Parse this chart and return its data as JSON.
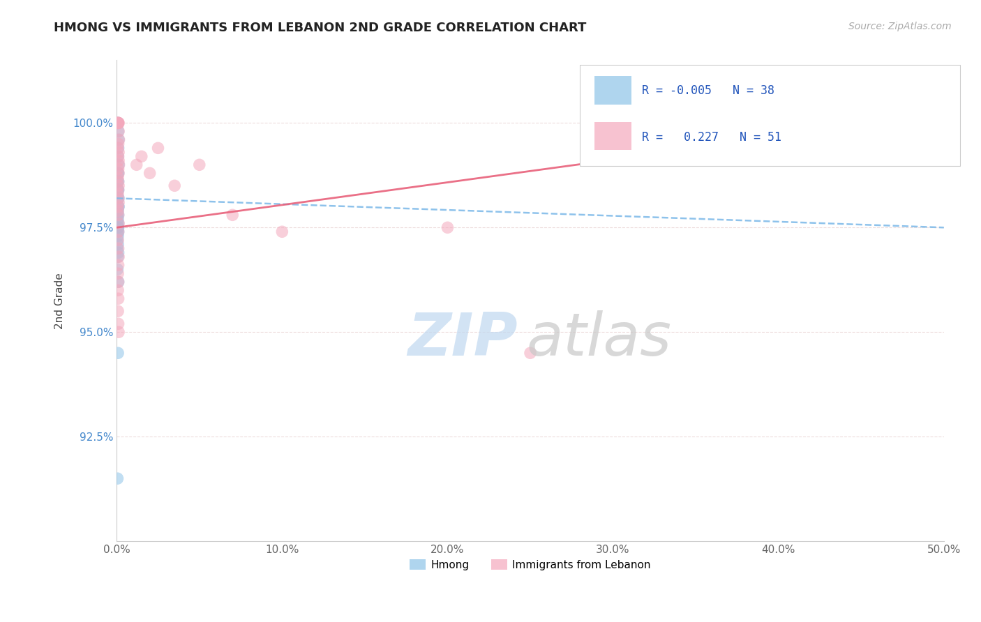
{
  "title": "HMONG VS IMMIGRANTS FROM LEBANON 2ND GRADE CORRELATION CHART",
  "source": "Source: ZipAtlas.com",
  "ylabel": "2nd Grade",
  "xlim": [
    0.0,
    50.0
  ],
  "ylim": [
    90.0,
    101.5
  ],
  "yticks": [
    92.5,
    95.0,
    97.5,
    100.0
  ],
  "yticklabels": [
    "92.5%",
    "95.0%",
    "97.5%",
    "100.0%"
  ],
  "xticks": [
    0.0,
    10.0,
    20.0,
    30.0,
    40.0,
    50.0
  ],
  "xticklabels": [
    "0.0%",
    "10.0%",
    "20.0%",
    "30.0%",
    "40.0%",
    "50.0%"
  ],
  "legend_R_blue": "-0.005",
  "legend_N_blue": "38",
  "legend_R_pink": "0.227",
  "legend_N_pink": "51",
  "blue_color": "#8ec4e8",
  "pink_color": "#f4a8bc",
  "trend_blue_color": "#7ab8e8",
  "trend_pink_color": "#e8607a",
  "blue_dots_x": [
    0.0,
    0.05,
    0.08,
    0.1,
    0.12,
    0.1,
    0.08,
    0.12,
    0.1,
    0.08,
    0.05,
    0.1,
    0.08,
    0.1,
    0.12,
    0.08,
    0.1,
    0.12,
    0.08,
    0.1,
    0.05,
    0.08,
    0.1,
    0.05,
    0.08,
    0.1,
    0.08,
    0.1,
    0.08,
    0.05,
    0.08,
    0.05,
    0.1,
    0.08,
    0.05,
    0.1,
    0.08,
    0.05
  ],
  "blue_dots_y": [
    100.0,
    100.0,
    100.0,
    99.8,
    99.6,
    99.4,
    99.2,
    99.0,
    98.8,
    98.8,
    98.6,
    98.6,
    98.4,
    98.4,
    98.2,
    98.2,
    98.0,
    98.0,
    97.9,
    97.8,
    97.8,
    97.7,
    97.6,
    97.6,
    97.5,
    97.5,
    97.4,
    97.4,
    97.3,
    97.2,
    97.1,
    97.0,
    96.9,
    96.8,
    96.5,
    96.2,
    94.5,
    91.5
  ],
  "pink_dots_x": [
    0.0,
    0.05,
    0.08,
    0.1,
    0.12,
    0.08,
    0.1,
    0.12,
    0.14,
    0.1,
    0.08,
    0.12,
    0.1,
    0.12,
    0.14,
    0.1,
    0.12,
    0.08,
    0.1,
    0.12,
    0.1,
    0.08,
    0.1,
    0.12,
    0.1,
    0.08,
    0.1,
    0.12,
    0.1,
    0.08,
    0.1,
    0.12,
    0.1,
    0.08,
    0.1,
    0.08,
    0.1,
    0.08,
    0.1,
    0.12,
    1.2,
    1.5,
    2.0,
    2.5,
    3.5,
    5.0,
    7.0,
    10.0,
    20.0,
    25.0,
    47.0
  ],
  "pink_dots_y": [
    100.0,
    100.0,
    100.0,
    100.0,
    100.0,
    100.0,
    100.0,
    99.8,
    99.6,
    99.5,
    99.4,
    99.3,
    99.2,
    99.1,
    99.0,
    98.9,
    98.8,
    98.7,
    98.6,
    98.5,
    98.4,
    98.3,
    98.2,
    98.1,
    98.0,
    97.9,
    97.8,
    97.6,
    97.4,
    97.2,
    97.0,
    96.8,
    96.6,
    96.4,
    96.2,
    96.0,
    95.8,
    95.5,
    95.2,
    95.0,
    99.0,
    99.2,
    98.8,
    99.4,
    98.5,
    99.0,
    97.8,
    97.4,
    97.5,
    94.5,
    100.0
  ]
}
